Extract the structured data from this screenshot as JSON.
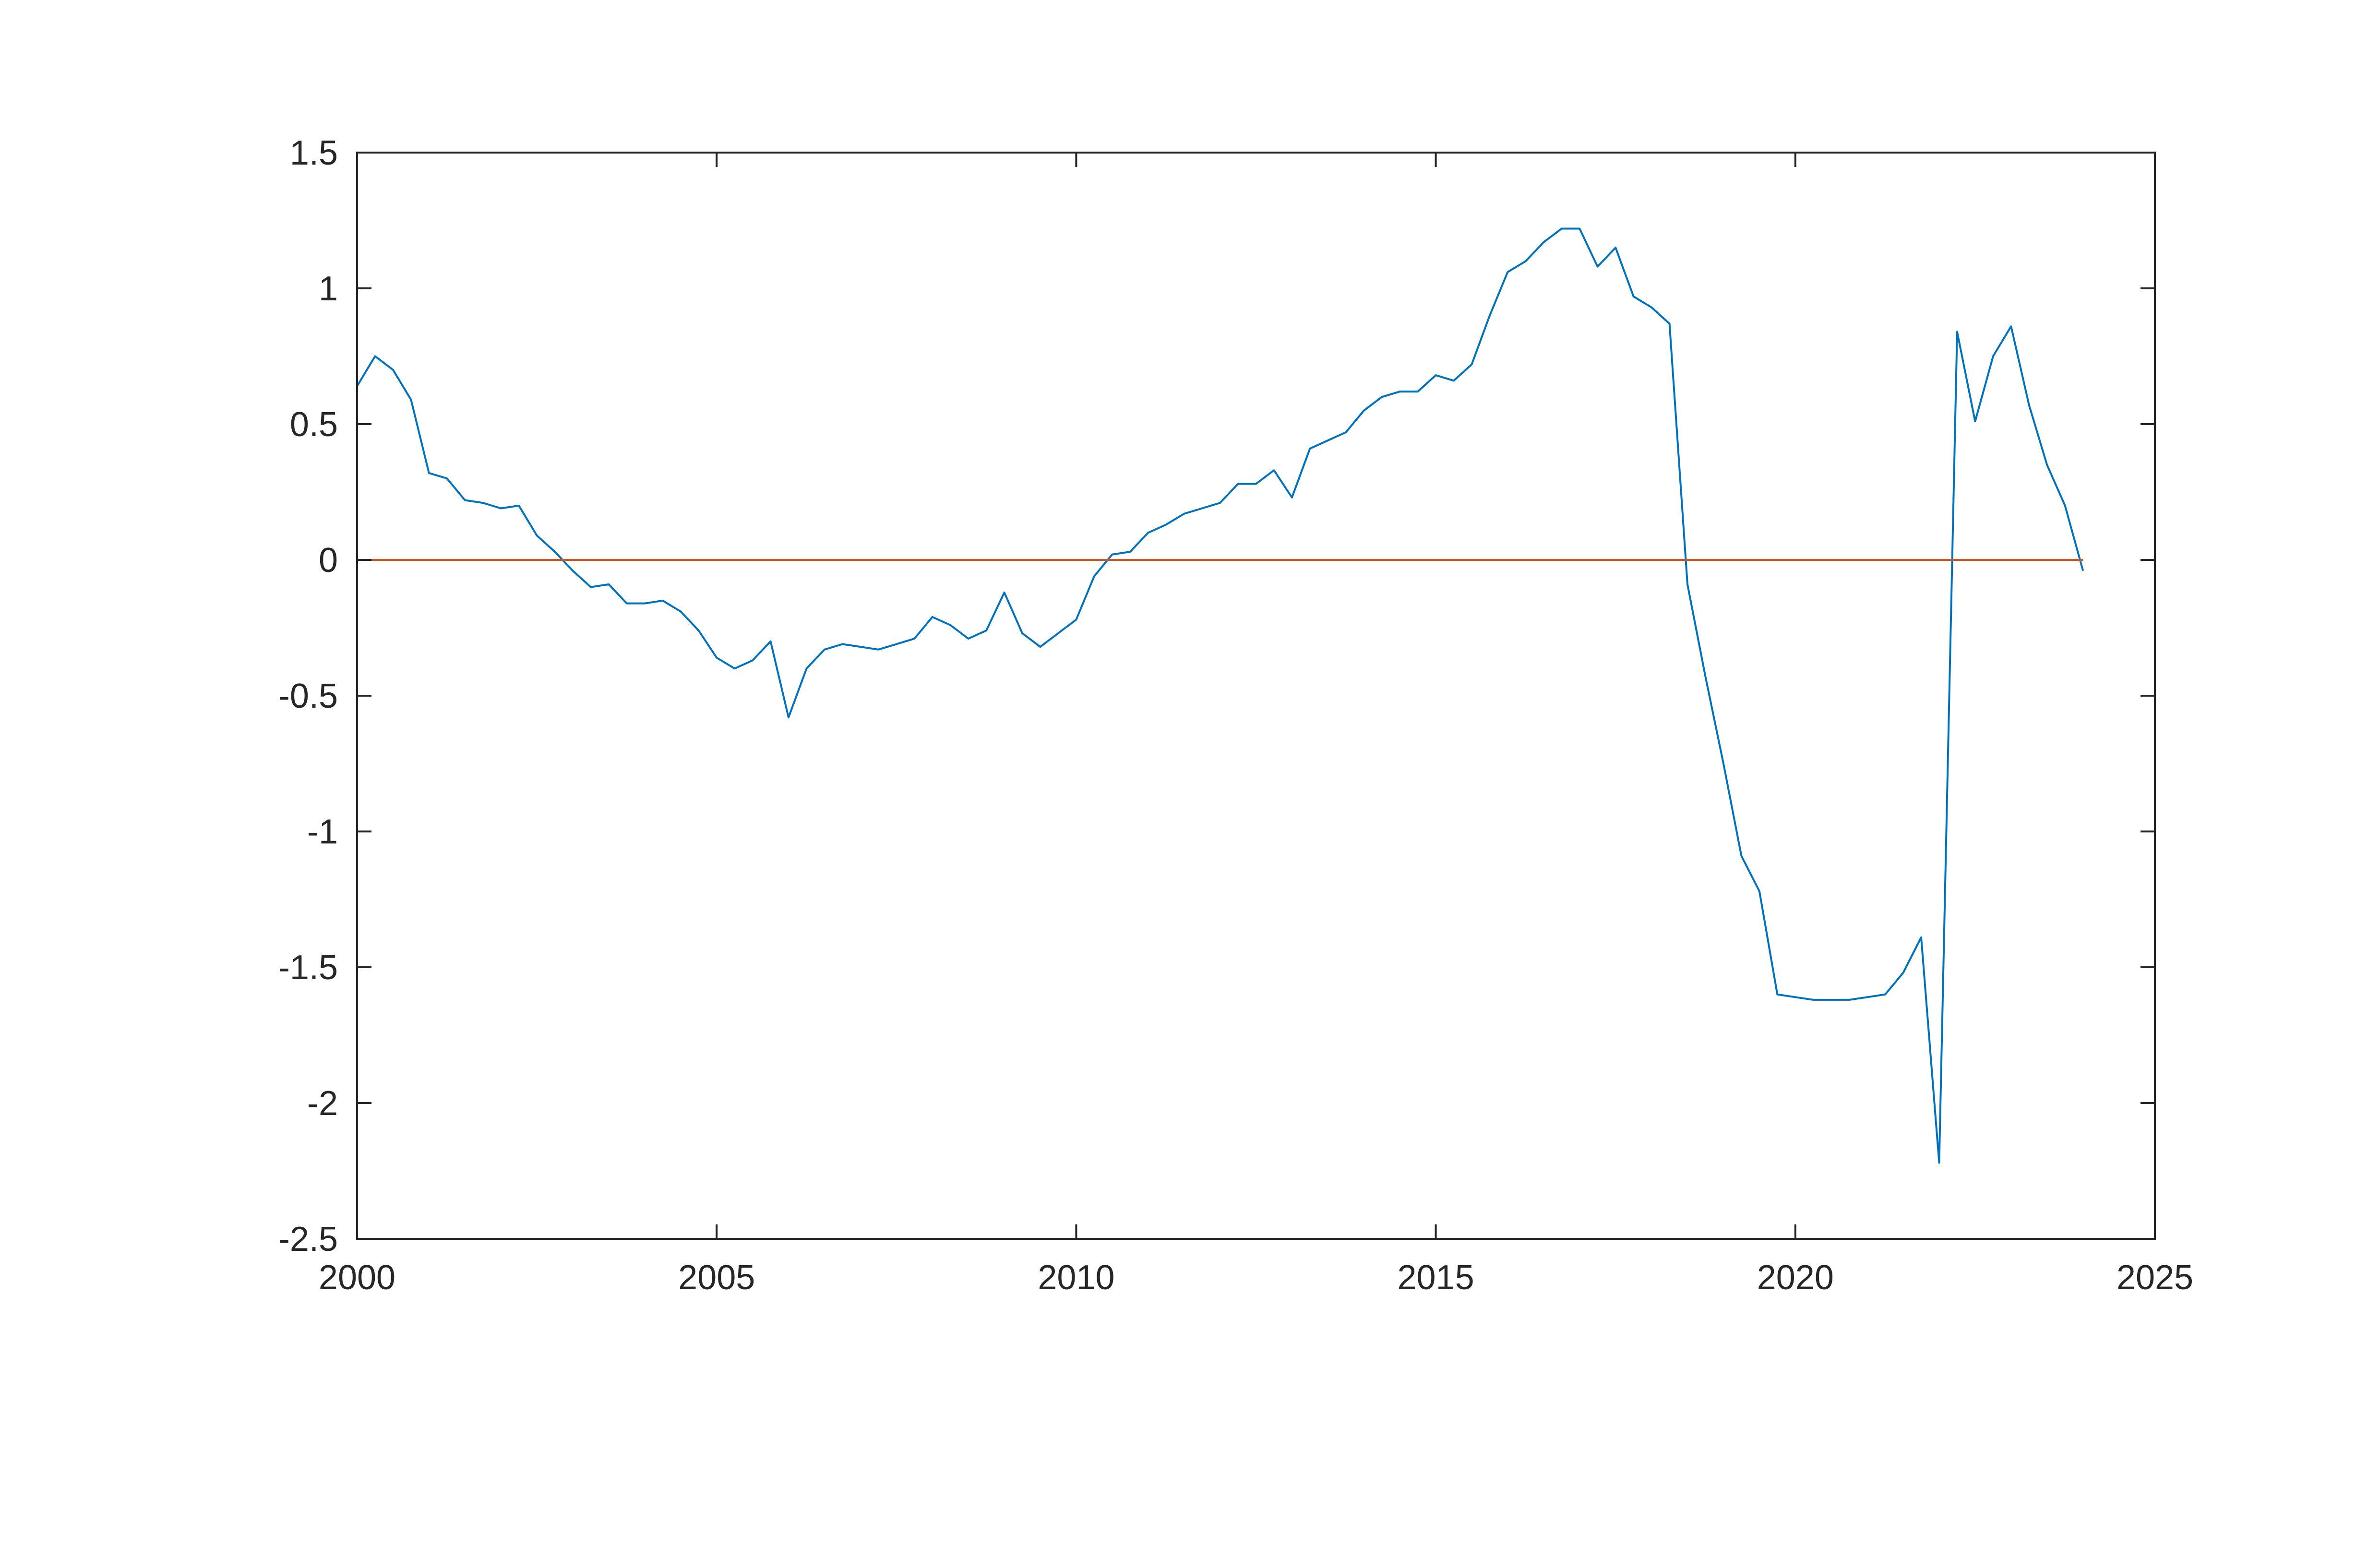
{
  "chart_data": {
    "type": "line",
    "title": "",
    "xlabel": "",
    "ylabel": "",
    "xlim": [
      2000,
      2025
    ],
    "ylim": [
      -2.5,
      1.5
    ],
    "x_ticks": [
      2000,
      2005,
      2010,
      2015,
      2020,
      2025
    ],
    "x_tick_labels": [
      "2000",
      "2005",
      "2010",
      "2015",
      "2020",
      "2025"
    ],
    "y_ticks": [
      1.5,
      1,
      0.5,
      0,
      -0.5,
      -1,
      -1.5,
      -2,
      -2.5
    ],
    "y_tick_labels": [
      "1.5",
      "1",
      "0.5",
      "0",
      "-0.5",
      "-1",
      "-1.5",
      "-2",
      "-2.5"
    ],
    "grid": false,
    "legend": "none",
    "colors": {
      "series": "#0072BD",
      "zero_line": "#D95319",
      "axes": "#262626"
    },
    "series": [
      {
        "x": [
          2000.0,
          2000.25,
          2000.5,
          2000.75,
          2001.0,
          2001.25,
          2001.5,
          2001.75,
          2002.0,
          2002.25,
          2002.5,
          2002.75,
          2003.0,
          2003.25,
          2003.5,
          2003.75,
          2004.0,
          2004.25,
          2004.5,
          2004.75,
          2005.0,
          2005.25,
          2005.5,
          2005.75,
          2006.0,
          2006.25,
          2006.5,
          2006.75,
          2007.0,
          2007.25,
          2007.5,
          2007.75,
          2008.0,
          2008.25,
          2008.5,
          2008.75,
          2009.0,
          2009.25,
          2009.5,
          2009.75,
          2010.0,
          2010.25,
          2010.5,
          2010.75,
          2011.0,
          2011.25,
          2011.5,
          2011.75,
          2012.0,
          2012.25,
          2012.5,
          2012.75,
          2013.0,
          2013.25,
          2013.5,
          2013.75,
          2014.0,
          2014.25,
          2014.5,
          2014.75,
          2015.0,
          2015.25,
          2015.5,
          2015.75,
          2016.0,
          2016.25,
          2016.5,
          2016.75,
          2017.0,
          2017.25,
          2017.5,
          2017.75,
          2018.0,
          2018.25,
          2018.5,
          2018.75,
          2019.0,
          2019.25,
          2019.5,
          2019.75,
          2020.0,
          2020.25,
          2020.5,
          2020.75,
          2021.0,
          2021.25,
          2021.5,
          2021.75,
          2022.0,
          2022.25,
          2022.5,
          2022.75,
          2023.0,
          2023.25,
          2023.5,
          2023.75,
          2024.0
        ],
        "values": [
          0.64,
          0.75,
          0.7,
          0.59,
          0.32,
          0.3,
          0.22,
          0.21,
          0.19,
          0.2,
          0.09,
          0.03,
          -0.04,
          -0.1,
          -0.09,
          -0.16,
          -0.16,
          -0.15,
          -0.19,
          -0.26,
          -0.36,
          -0.4,
          -0.37,
          -0.3,
          -0.58,
          -0.4,
          -0.33,
          -0.31,
          -0.32,
          -0.33,
          -0.31,
          -0.29,
          -0.21,
          -0.24,
          -0.29,
          -0.26,
          -0.12,
          -0.27,
          -0.32,
          -0.27,
          -0.22,
          -0.06,
          0.02,
          0.03,
          0.1,
          0.13,
          0.17,
          0.19,
          0.21,
          0.28,
          0.28,
          0.33,
          0.23,
          0.41,
          0.44,
          0.47,
          0.55,
          0.6,
          0.62,
          0.62,
          0.68,
          0.66,
          0.72,
          0.9,
          1.06,
          1.1,
          1.17,
          1.22,
          1.22,
          1.08,
          1.15,
          0.97,
          0.93,
          0.87,
          -0.09,
          -0.43,
          -0.75,
          -1.09,
          -1.22,
          -1.6,
          -1.61,
          -1.62,
          -1.62,
          -1.62,
          -1.61,
          -1.6,
          -1.52,
          -1.39,
          -2.22,
          0.84,
          0.51,
          0.75,
          0.86,
          0.57,
          0.35,
          0.2,
          -0.04
        ]
      },
      {
        "x": [
          2000,
          2024
        ],
        "values": [
          0,
          0
        ]
      }
    ]
  }
}
